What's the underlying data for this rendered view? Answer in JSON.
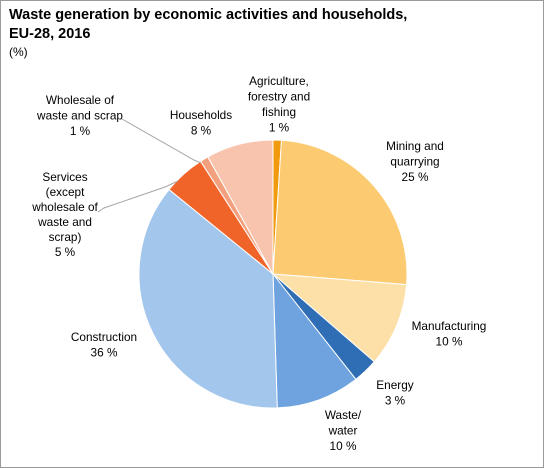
{
  "chart_data": {
    "type": "pie",
    "title": "Waste generation by economic activities and households, EU-28, 2016",
    "subtitle": "(%)",
    "slices": [
      {
        "label": "Agriculture, forestry and fishing",
        "value": 1,
        "value_label": "1 %",
        "color": "#f29a0e"
      },
      {
        "label": "Mining and quarrying",
        "value": 25,
        "value_label": "25 %",
        "color": "#fccb71"
      },
      {
        "label": "Manufacturing",
        "value": 10,
        "value_label": "10 %",
        "color": "#fde0a7"
      },
      {
        "label": "Energy",
        "value": 3,
        "value_label": "3 %",
        "color": "#2f6db5"
      },
      {
        "label": "Waste/ water",
        "value": 10,
        "value_label": "10 %",
        "color": "#6fa3df"
      },
      {
        "label": "Construction",
        "value": 36,
        "value_label": "36 %",
        "color": "#a3c6ec"
      },
      {
        "label": "Services (except wholesale of waste and scrap)",
        "value": 5,
        "value_label": "5 %",
        "color": "#f0642a"
      },
      {
        "label": "Wholesale of waste and scrap",
        "value": 1,
        "value_label": "1 %",
        "color": "#f3a07f"
      },
      {
        "label": "Households",
        "value": 8,
        "value_label": "8 %",
        "color": "#f8c4ad"
      }
    ],
    "legend": "none"
  },
  "labels": [
    {
      "lines": [
        "Agriculture,",
        "forestry and",
        "fishing",
        "1 %"
      ]
    },
    {
      "lines": [
        "Mining and",
        "quarrying",
        "25 %"
      ]
    },
    {
      "lines": [
        "Manufacturing",
        "10 %"
      ]
    },
    {
      "lines": [
        "Energy",
        "3 %"
      ]
    },
    {
      "lines": [
        "Waste/",
        "water",
        "10 %"
      ]
    },
    {
      "lines": [
        "Construction",
        "36 %"
      ]
    },
    {
      "lines": [
        "Services",
        "(except",
        "wholesale of",
        "waste and",
        "scrap)",
        "5 %"
      ]
    },
    {
      "lines": [
        "Wholesale of",
        "waste and scrap",
        "1 %"
      ]
    },
    {
      "lines": [
        "Households",
        "8 %"
      ]
    }
  ]
}
